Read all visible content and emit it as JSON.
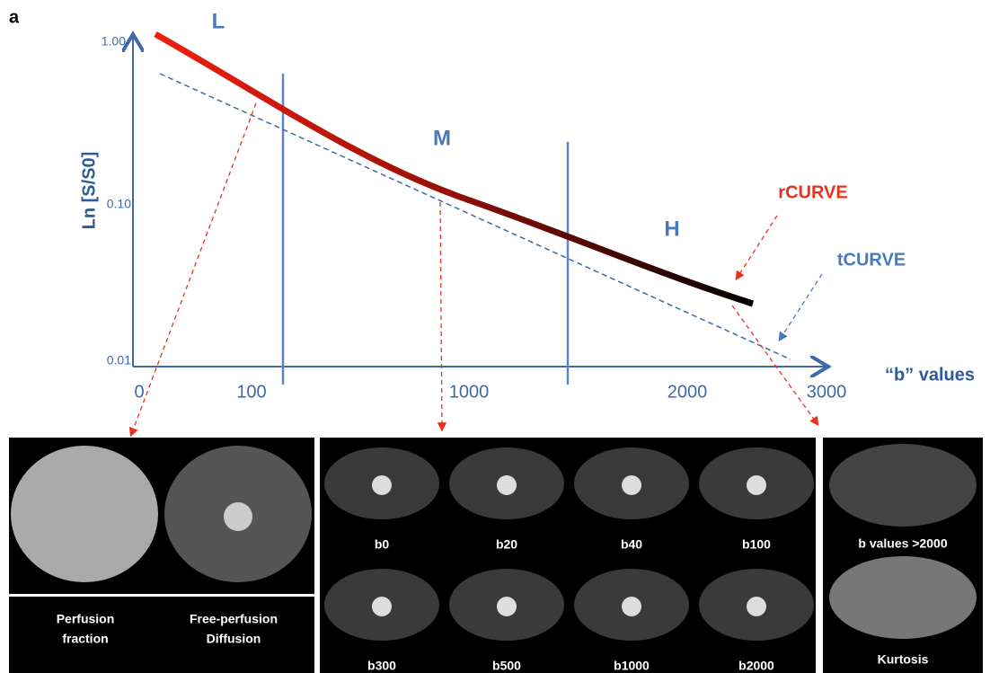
{
  "figure_label": "a",
  "axis": {
    "y_title": "Ln [S/S0]",
    "y_labels": [
      "1.00",
      "0.10",
      "0.01"
    ],
    "x_labels": [
      "0",
      "100",
      "1000",
      "2000",
      "3000"
    ],
    "x_title": "“b” values"
  },
  "regions": [
    "L",
    "M",
    "H"
  ],
  "curves": {
    "r": "rCURVE",
    "t": "tCURVE"
  },
  "panels": {
    "left": [
      [
        "Perfusion",
        "fraction"
      ],
      [
        "Free-perfusion",
        "Diffusion"
      ]
    ],
    "middle": [
      "b0",
      "b20",
      "b40",
      "b100",
      "b300",
      "b500",
      "b1000",
      "b2000"
    ],
    "right": [
      "b values >2000",
      "Kurtosis"
    ]
  }
}
